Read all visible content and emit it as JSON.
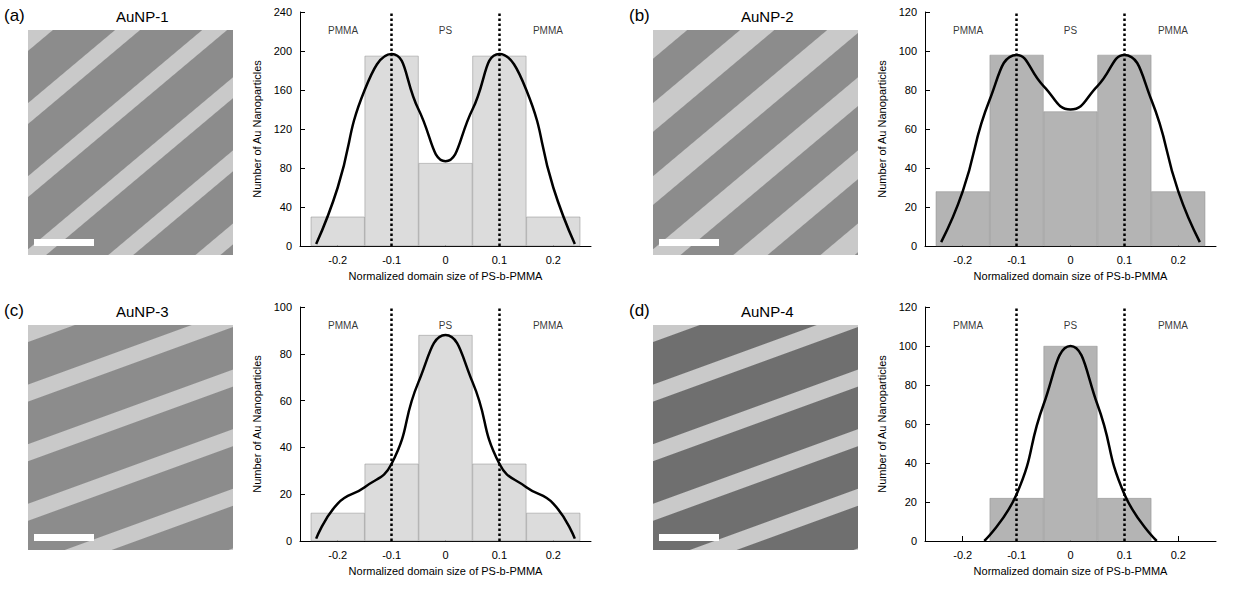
{
  "chart_data": [
    {
      "type": "bar",
      "panel": "(a)",
      "image_label": "AuNP-1",
      "xlabel": "Normalized domain size of PS-b-PMMA",
      "ylabel": "Number of Au Nanoparticles",
      "xlim": [
        -0.27,
        0.27
      ],
      "xticks": [
        -0.2,
        -0.1,
        0,
        0.1,
        0.2
      ],
      "ylim": [
        0,
        240
      ],
      "yticks": [
        0,
        40,
        80,
        120,
        160,
        200,
        240
      ],
      "grid": false,
      "boundaries": [
        -0.1,
        0.1
      ],
      "regions": [
        {
          "label": "PMMA",
          "x": -0.19
        },
        {
          "label": "PS",
          "x": 0
        },
        {
          "label": "PMMA",
          "x": 0.19
        }
      ],
      "series": [
        {
          "type": "bar",
          "color": "#dcdcdc",
          "x": [
            -0.2,
            -0.1,
            0,
            0.1,
            0.2
          ],
          "values": [
            30,
            195,
            85,
            195,
            30
          ]
        },
        {
          "type": "line",
          "color": "#000000",
          "line_style": "solid",
          "x": [
            -0.24,
            -0.2,
            -0.15,
            -0.1,
            -0.05,
            0,
            0.05,
            0.1,
            0.15,
            0.2,
            0.24
          ],
          "values": [
            2,
            60,
            160,
            197,
            140,
            87,
            140,
            197,
            160,
            60,
            2
          ]
        }
      ]
    },
    {
      "type": "bar",
      "panel": "(b)",
      "image_label": "AuNP-2",
      "xlabel": "Normalized domain size of PS-b-PMMA",
      "ylabel": "Number of Au Nanoparticles",
      "xlim": [
        -0.27,
        0.27
      ],
      "xticks": [
        -0.2,
        -0.1,
        0,
        0.1,
        0.2
      ],
      "ylim": [
        0,
        120
      ],
      "yticks": [
        0,
        20,
        40,
        60,
        80,
        100,
        120
      ],
      "grid": false,
      "boundaries": [
        -0.1,
        0.1
      ],
      "regions": [
        {
          "label": "PMMA",
          "x": -0.19
        },
        {
          "label": "PS",
          "x": 0
        },
        {
          "label": "PMMA",
          "x": 0.19
        }
      ],
      "series": [
        {
          "type": "bar",
          "color": "#b4b4b4",
          "x": [
            -0.2,
            -0.1,
            0,
            0.1,
            0.2
          ],
          "values": [
            28,
            98,
            69,
            98,
            28
          ]
        },
        {
          "type": "line",
          "color": "#000000",
          "line_style": "solid",
          "x": [
            -0.24,
            -0.2,
            -0.15,
            -0.1,
            -0.05,
            0,
            0.05,
            0.1,
            0.15,
            0.2,
            0.24
          ],
          "values": [
            2,
            28,
            75,
            98,
            82,
            70,
            82,
            98,
            75,
            28,
            2
          ]
        }
      ]
    },
    {
      "type": "bar",
      "panel": "(c)",
      "image_label": "AuNP-3",
      "xlabel": "Normalized domain size of PS-b-PMMA",
      "ylabel": "Number of Au Nanoparticles",
      "xlim": [
        -0.27,
        0.27
      ],
      "xticks": [
        -0.2,
        -0.1,
        0,
        0.1,
        0.2
      ],
      "ylim": [
        0,
        100
      ],
      "yticks": [
        0,
        20,
        40,
        60,
        80,
        100
      ],
      "grid": false,
      "boundaries": [
        -0.1,
        0.1
      ],
      "regions": [
        {
          "label": "PMMA",
          "x": -0.19
        },
        {
          "label": "PS",
          "x": 0
        },
        {
          "label": "PMMA",
          "x": 0.19
        }
      ],
      "series": [
        {
          "type": "bar",
          "color": "#dcdcdc",
          "x": [
            -0.2,
            -0.1,
            0,
            0.1,
            0.2
          ],
          "values": [
            12,
            33,
            88,
            33,
            12
          ]
        },
        {
          "type": "line",
          "color": "#000000",
          "line_style": "solid",
          "x": [
            -0.24,
            -0.2,
            -0.15,
            -0.1,
            -0.05,
            0,
            0.05,
            0.1,
            0.15,
            0.2,
            0.24
          ],
          "values": [
            1,
            16,
            23,
            33,
            68,
            88,
            68,
            33,
            23,
            16,
            1
          ]
        }
      ]
    },
    {
      "type": "bar",
      "panel": "(d)",
      "image_label": "AuNP-4",
      "xlabel": "Normalized domain size of PS-b-PMMA",
      "ylabel": "Number of Au Nanoparticles",
      "xlim": [
        -0.27,
        0.27
      ],
      "xticks": [
        -0.2,
        -0.1,
        0,
        0.1,
        0.2
      ],
      "ylim": [
        0,
        120
      ],
      "yticks": [
        0,
        20,
        40,
        60,
        80,
        100,
        120
      ],
      "grid": false,
      "boundaries": [
        -0.1,
        0.1
      ],
      "regions": [
        {
          "label": "PMMA",
          "x": -0.19
        },
        {
          "label": "PS",
          "x": 0
        },
        {
          "label": "PMMA",
          "x": 0.19
        }
      ],
      "series": [
        {
          "type": "bar",
          "color": "#b4b4b4",
          "x": [
            -0.1,
            0,
            0.1
          ],
          "values": [
            22,
            100,
            22
          ]
        },
        {
          "type": "line",
          "color": "#000000",
          "line_style": "solid",
          "x": [
            -0.16,
            -0.1,
            -0.05,
            0,
            0.05,
            0.1,
            0.16
          ],
          "values": [
            0,
            24,
            70,
            100,
            70,
            24,
            0
          ]
        }
      ]
    }
  ]
}
